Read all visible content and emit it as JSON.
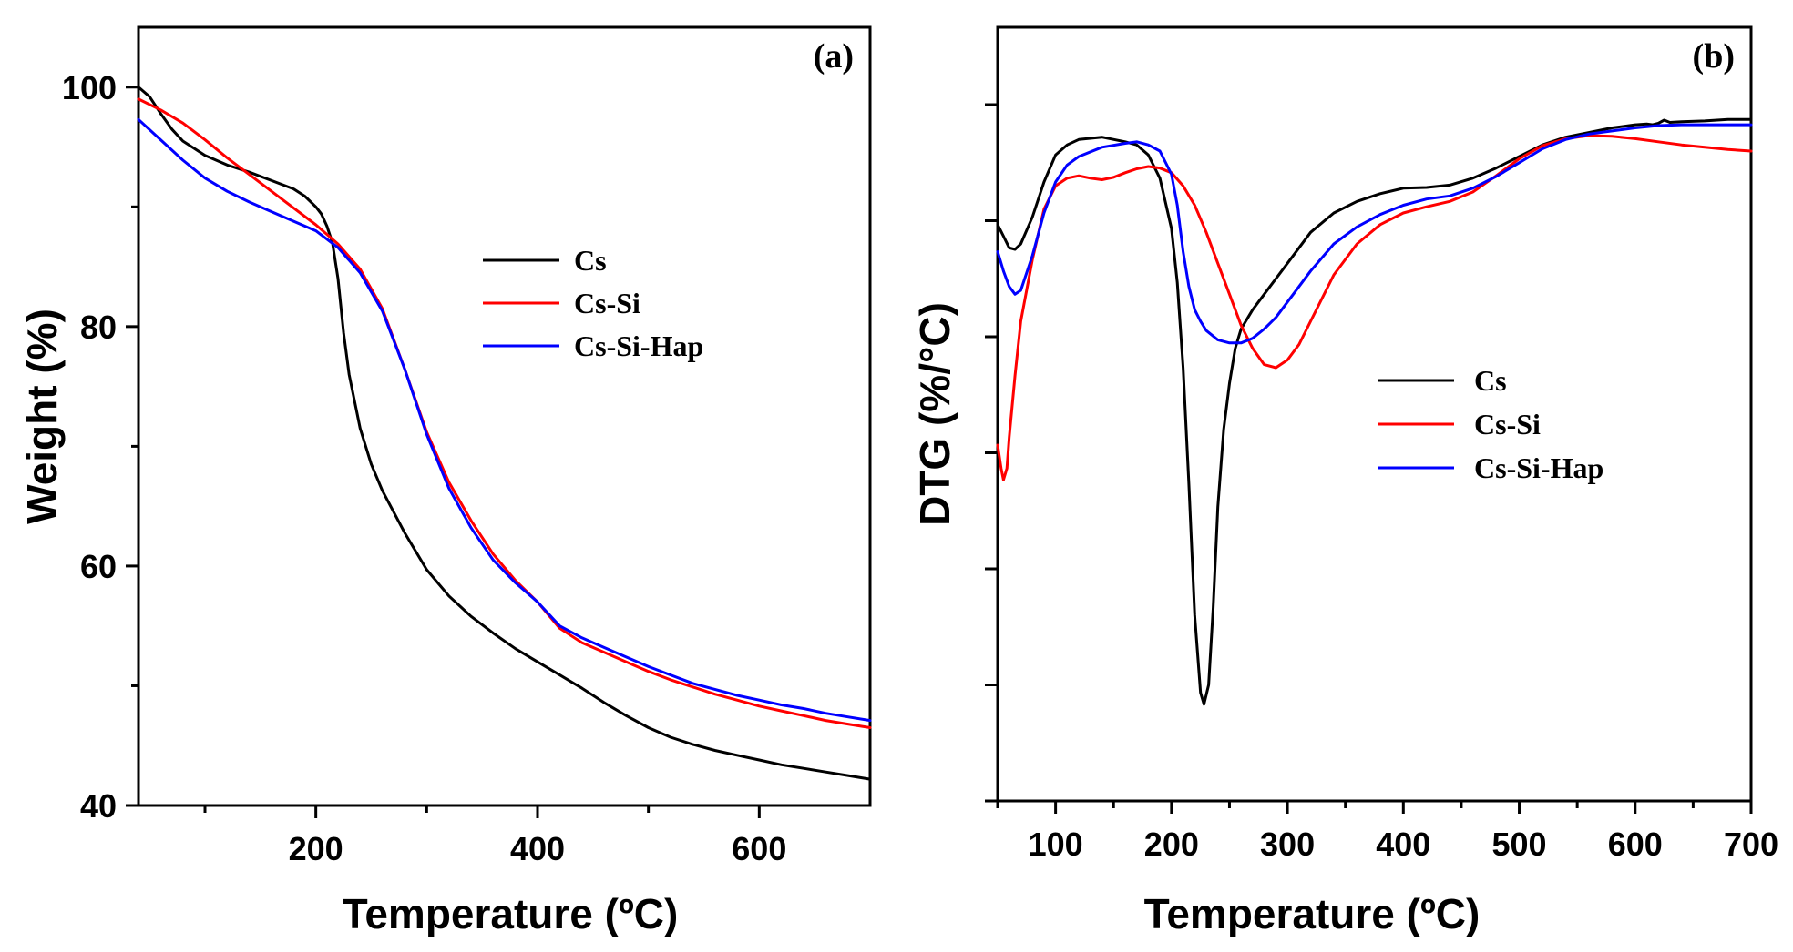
{
  "chart_data": [
    {
      "panel": "a",
      "type": "line",
      "panel_label": "(a)",
      "xlabel": "Temperature (ºC)",
      "ylabel": "Weight (%)",
      "xlim": [
        40,
        700
      ],
      "ylim": [
        40,
        105
      ],
      "xticks": [
        200,
        400,
        600
      ],
      "xticks_minor": [
        100,
        300,
        500
      ],
      "yticks": [
        40,
        60,
        80,
        100
      ],
      "yticks_minor": [
        50,
        70,
        90
      ],
      "xtick_labels": [
        "200",
        "400",
        "600"
      ],
      "ytick_labels": [
        "40",
        "60",
        "80",
        "100"
      ],
      "legend_position": "center-right",
      "series": [
        {
          "name": "Cs",
          "color": "#000000",
          "x": [
            40,
            50,
            60,
            70,
            80,
            100,
            120,
            140,
            160,
            180,
            190,
            200,
            205,
            210,
            215,
            220,
            225,
            230,
            240,
            250,
            260,
            280,
            300,
            320,
            340,
            360,
            380,
            400,
            420,
            440,
            460,
            480,
            500,
            520,
            540,
            560,
            580,
            600,
            620,
            640,
            660,
            680,
            700
          ],
          "y": [
            100,
            99.2,
            97.8,
            96.5,
            95.5,
            94.3,
            93.5,
            92.9,
            92.2,
            91.5,
            90.9,
            90.0,
            89.4,
            88.4,
            87.0,
            84.0,
            79.5,
            76.0,
            71.5,
            68.5,
            66.3,
            62.8,
            59.7,
            57.5,
            55.8,
            54.4,
            53.1,
            52.0,
            50.9,
            49.8,
            48.6,
            47.5,
            46.5,
            45.7,
            45.1,
            44.6,
            44.2,
            43.8,
            43.4,
            43.1,
            42.8,
            42.5,
            42.2
          ]
        },
        {
          "name": "Cs-Si",
          "color": "#ff0000",
          "x": [
            40,
            60,
            80,
            100,
            120,
            140,
            160,
            180,
            200,
            220,
            240,
            260,
            280,
            300,
            320,
            340,
            360,
            380,
            400,
            420,
            440,
            460,
            480,
            500,
            520,
            540,
            560,
            580,
            600,
            620,
            640,
            660,
            680,
            700
          ],
          "y": [
            99.0,
            98.1,
            97.0,
            95.6,
            94.1,
            92.7,
            91.3,
            89.9,
            88.5,
            86.9,
            84.8,
            81.5,
            76.5,
            71.2,
            67.0,
            63.8,
            61.0,
            58.8,
            57.0,
            54.8,
            53.6,
            52.8,
            52.0,
            51.2,
            50.5,
            49.9,
            49.3,
            48.8,
            48.3,
            47.9,
            47.5,
            47.1,
            46.8,
            46.5
          ]
        },
        {
          "name": "Cs-Si-Hap",
          "color": "#0000ff",
          "x": [
            40,
            60,
            80,
            100,
            120,
            140,
            160,
            180,
            200,
            220,
            240,
            260,
            280,
            300,
            320,
            340,
            360,
            380,
            400,
            420,
            440,
            460,
            480,
            500,
            520,
            540,
            560,
            580,
            600,
            620,
            640,
            660,
            680,
            700
          ],
          "y": [
            97.3,
            95.6,
            93.9,
            92.4,
            91.3,
            90.4,
            89.6,
            88.8,
            88.0,
            86.6,
            84.5,
            81.3,
            76.5,
            71.0,
            66.5,
            63.2,
            60.5,
            58.6,
            57.0,
            55.0,
            54.0,
            53.2,
            52.4,
            51.6,
            50.9,
            50.2,
            49.7,
            49.2,
            48.8,
            48.4,
            48.1,
            47.7,
            47.4,
            47.1
          ]
        }
      ]
    },
    {
      "panel": "b",
      "type": "line",
      "panel_label": "(b)",
      "xlabel": "Temperature (ºC)",
      "ylabel": "DTG (%/°C)",
      "xlim": [
        50,
        700
      ],
      "ylim": [
        0,
        100
      ],
      "yticks_unlabeled": [
        0,
        15,
        30,
        45,
        60,
        75,
        90
      ],
      "xticks": [
        100,
        200,
        300,
        400,
        500,
        600,
        700
      ],
      "xticks_minor": [
        50,
        150,
        250,
        350,
        450,
        550,
        650
      ],
      "xtick_labels": [
        "100",
        "200",
        "300",
        "400",
        "500",
        "600",
        "700"
      ],
      "legend_position": "center-right",
      "series": [
        {
          "name": "Cs",
          "color": "#000000",
          "x": [
            50,
            55,
            60,
            65,
            70,
            80,
            90,
            100,
            110,
            120,
            140,
            160,
            170,
            180,
            190,
            200,
            205,
            210,
            215,
            220,
            225,
            228,
            232,
            236,
            240,
            245,
            250,
            255,
            260,
            270,
            280,
            300,
            320,
            340,
            360,
            380,
            400,
            420,
            440,
            460,
            480,
            500,
            520,
            540,
            560,
            580,
            600,
            610,
            615,
            620,
            625,
            630,
            640,
            660,
            680,
            700
          ],
          "y": [
            74.5,
            73,
            71.5,
            71.3,
            72,
            75.5,
            80,
            83.5,
            84.8,
            85.5,
            85.8,
            85.2,
            84.8,
            83.5,
            80.5,
            74,
            67,
            56,
            41,
            24,
            14,
            12.5,
            15,
            25,
            38,
            48,
            54,
            58.5,
            61,
            63.5,
            65.5,
            69.5,
            73.5,
            76,
            77.5,
            78.5,
            79.2,
            79.3,
            79.6,
            80.5,
            81.8,
            83.3,
            84.8,
            85.8,
            86.4,
            87,
            87.4,
            87.5,
            87.4,
            87.6,
            88,
            87.7,
            87.8,
            87.9,
            88.1,
            88.1
          ]
        },
        {
          "name": "Cs-Si",
          "color": "#ff0000",
          "x": [
            50,
            53,
            55,
            58,
            60,
            65,
            70,
            80,
            90,
            100,
            110,
            120,
            130,
            140,
            150,
            160,
            170,
            180,
            190,
            200,
            210,
            220,
            230,
            240,
            250,
            260,
            270,
            280,
            290,
            300,
            310,
            320,
            340,
            360,
            380,
            400,
            420,
            440,
            460,
            480,
            500,
            520,
            540,
            560,
            580,
            600,
            620,
            640,
            660,
            680,
            700
          ],
          "y": [
            46,
            43,
            41.5,
            43,
            47,
            55,
            62,
            70,
            76.5,
            79.5,
            80.5,
            80.8,
            80.5,
            80.3,
            80.6,
            81.2,
            81.7,
            82,
            81.8,
            81.2,
            79.5,
            77,
            73.5,
            69.5,
            65.5,
            61.5,
            58.5,
            56.4,
            56,
            57,
            59,
            62,
            68,
            72,
            74.5,
            76,
            76.8,
            77.5,
            78.7,
            80.8,
            83,
            84.7,
            85.6,
            86,
            85.9,
            85.6,
            85.2,
            84.8,
            84.5,
            84.2,
            84
          ]
        },
        {
          "name": "Cs-Si-Hap",
          "color": "#0000ff",
          "x": [
            50,
            55,
            60,
            65,
            70,
            80,
            90,
            100,
            110,
            120,
            140,
            160,
            170,
            180,
            190,
            200,
            205,
            210,
            215,
            220,
            225,
            230,
            240,
            250,
            260,
            270,
            280,
            290,
            300,
            320,
            340,
            360,
            380,
            400,
            420,
            440,
            460,
            480,
            500,
            520,
            540,
            560,
            580,
            600,
            620,
            640,
            660,
            680,
            700
          ],
          "y": [
            71,
            68.5,
            66.5,
            65.5,
            66,
            70.5,
            76,
            80,
            82.2,
            83.3,
            84.5,
            85,
            85.2,
            84.8,
            84,
            81,
            77,
            71,
            66.5,
            63.5,
            62,
            60.8,
            59.6,
            59.2,
            59.2,
            59.8,
            61,
            62.5,
            64.5,
            68.5,
            72,
            74.2,
            75.8,
            77,
            77.8,
            78.2,
            79.2,
            80.7,
            82.5,
            84.3,
            85.5,
            86.2,
            86.6,
            87,
            87.3,
            87.4,
            87.4,
            87.4,
            87.4
          ]
        }
      ]
    }
  ]
}
